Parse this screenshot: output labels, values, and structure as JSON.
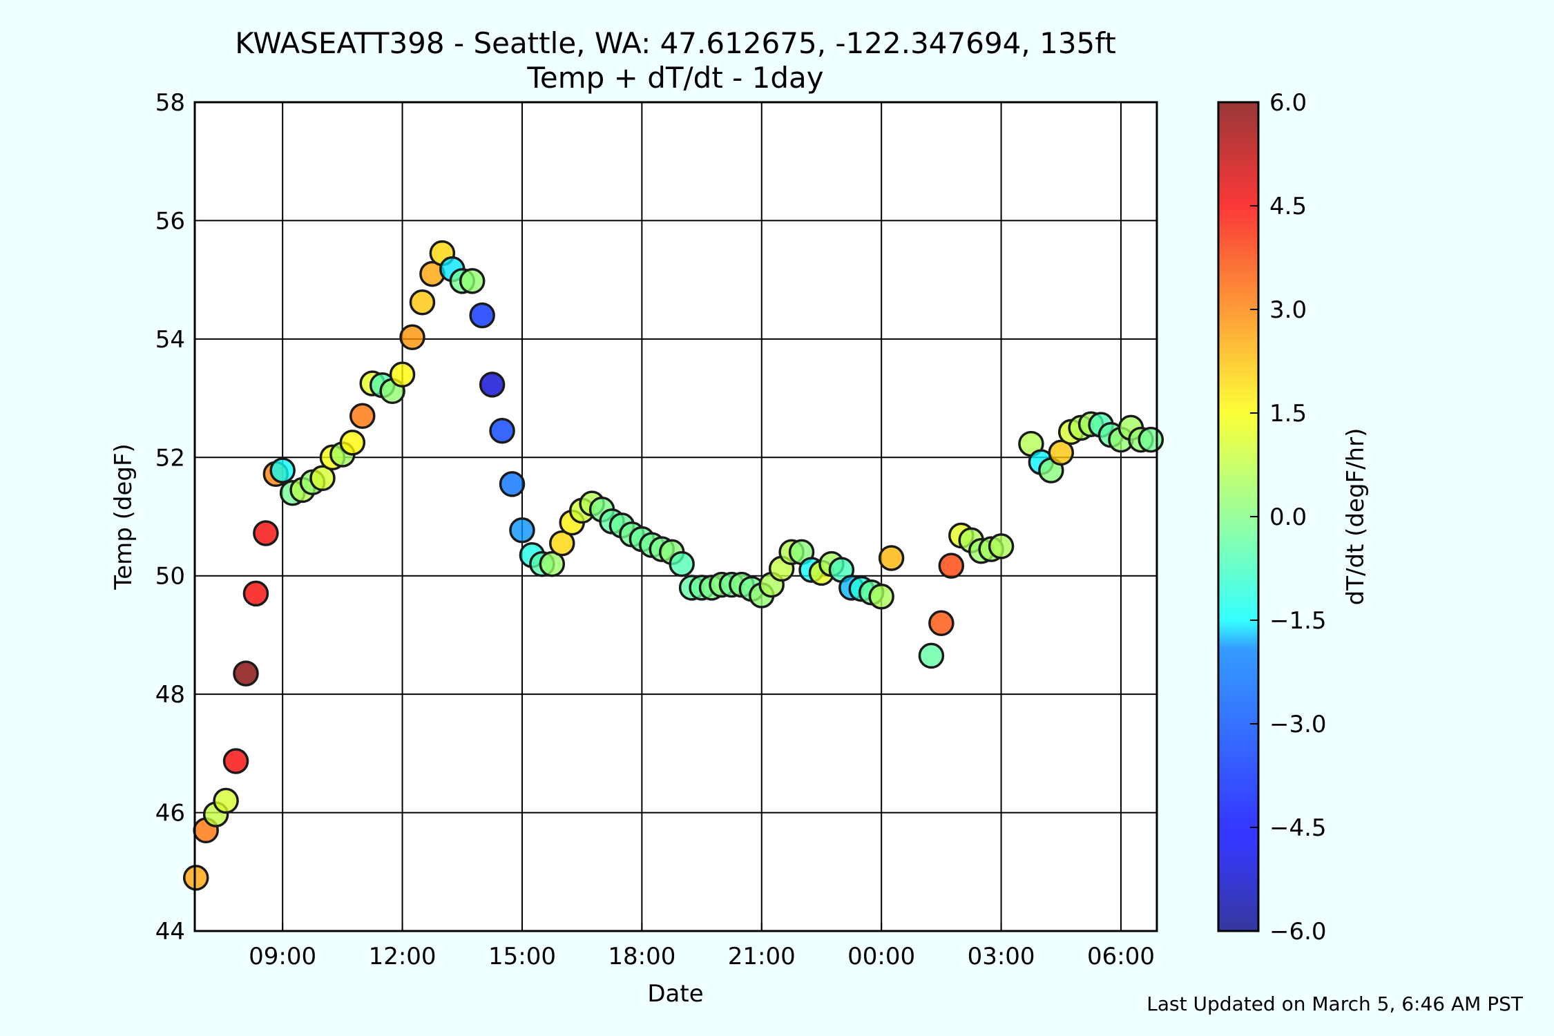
{
  "chart_data": {
    "type": "scatter",
    "title": "KWASEATT398 - Seattle, WA: 47.612675, -122.347694, 135ft",
    "subtitle": "Temp + dT/dt - 1day",
    "xlabel": "Date",
    "ylabel": "Temp (degF)",
    "colorbar_label": "dT/dt (degF/hr)",
    "footer": "Last Updated on March 5, 6:46 AM PST",
    "grid": true,
    "x_unit": "hours",
    "xlim": [
      6.8,
      30.9
    ],
    "ylim": [
      44,
      58
    ],
    "x_ticks": [
      {
        "x": 9,
        "label": "09:00"
      },
      {
        "x": 12,
        "label": "12:00"
      },
      {
        "x": 15,
        "label": "15:00"
      },
      {
        "x": 18,
        "label": "18:00"
      },
      {
        "x": 21,
        "label": "21:00"
      },
      {
        "x": 24,
        "label": "00:00"
      },
      {
        "x": 27,
        "label": "03:00"
      },
      {
        "x": 30,
        "label": "06:00"
      }
    ],
    "y_ticks": [
      {
        "y": 44,
        "label": "44"
      },
      {
        "y": 46,
        "label": "46"
      },
      {
        "y": 48,
        "label": "48"
      },
      {
        "y": 50,
        "label": "50"
      },
      {
        "y": 52,
        "label": "52"
      },
      {
        "y": 54,
        "label": "54"
      },
      {
        "y": 56,
        "label": "56"
      },
      {
        "y": 58,
        "label": "58"
      }
    ],
    "colorbar": {
      "range": [
        -6,
        6
      ],
      "colormap": "jet",
      "ticks": [
        {
          "v": 6,
          "label": "6.0"
        },
        {
          "v": 4.5,
          "label": "4.5"
        },
        {
          "v": 3,
          "label": "3.0"
        },
        {
          "v": 1.5,
          "label": "1.5"
        },
        {
          "v": 0,
          "label": "0.0"
        },
        {
          "v": -1.5,
          "label": "−1.5"
        },
        {
          "v": -3,
          "label": "−3.0"
        },
        {
          "v": -4.5,
          "label": "−4.5"
        },
        {
          "v": -6,
          "label": "−6.0"
        }
      ]
    },
    "points": [
      {
        "x": 6.83,
        "y": 44.9,
        "c": 2.6
      },
      {
        "x": 7.08,
        "y": 45.7,
        "c": 3.2
      },
      {
        "x": 7.33,
        "y": 45.97,
        "c": 0.8
      },
      {
        "x": 7.58,
        "y": 46.2,
        "c": 1.0
      },
      {
        "x": 7.83,
        "y": 46.87,
        "c": 4.6
      },
      {
        "x": 8.08,
        "y": 48.35,
        "c": 6.0
      },
      {
        "x": 8.33,
        "y": 49.7,
        "c": 4.6
      },
      {
        "x": 8.58,
        "y": 50.72,
        "c": 4.6
      },
      {
        "x": 8.83,
        "y": 51.72,
        "c": 3.0
      },
      {
        "x": 9.0,
        "y": 51.78,
        "c": -1.4
      },
      {
        "x": 9.25,
        "y": 51.4,
        "c": -0.2
      },
      {
        "x": 9.5,
        "y": 51.45,
        "c": 0.6
      },
      {
        "x": 9.75,
        "y": 51.58,
        "c": 0.2
      },
      {
        "x": 10.0,
        "y": 51.65,
        "c": 1.0
      },
      {
        "x": 10.25,
        "y": 52.0,
        "c": 1.4
      },
      {
        "x": 10.5,
        "y": 52.05,
        "c": 0.4
      },
      {
        "x": 10.75,
        "y": 52.25,
        "c": 1.6
      },
      {
        "x": 11.0,
        "y": 52.7,
        "c": 3.2
      },
      {
        "x": 11.25,
        "y": 53.25,
        "c": 1.2
      },
      {
        "x": 11.5,
        "y": 53.22,
        "c": -0.6
      },
      {
        "x": 11.75,
        "y": 53.12,
        "c": 0.2
      },
      {
        "x": 12.0,
        "y": 53.4,
        "c": 1.6
      },
      {
        "x": 12.25,
        "y": 54.03,
        "c": 2.8
      },
      {
        "x": 12.5,
        "y": 54.62,
        "c": 2.2
      },
      {
        "x": 12.75,
        "y": 55.1,
        "c": 2.6
      },
      {
        "x": 13.0,
        "y": 55.45,
        "c": 2.0
      },
      {
        "x": 13.25,
        "y": 55.18,
        "c": -1.8
      },
      {
        "x": 13.5,
        "y": 54.98,
        "c": -0.2
      },
      {
        "x": 13.75,
        "y": 54.98,
        "c": 0.2
      },
      {
        "x": 14.0,
        "y": 54.4,
        "c": -4.0
      },
      {
        "x": 14.25,
        "y": 53.23,
        "c": -5.0
      },
      {
        "x": 14.5,
        "y": 52.45,
        "c": -3.8
      },
      {
        "x": 14.75,
        "y": 51.55,
        "c": -3.2
      },
      {
        "x": 15.0,
        "y": 50.77,
        "c": -2.8
      },
      {
        "x": 15.25,
        "y": 50.35,
        "c": -1.2
      },
      {
        "x": 15.5,
        "y": 50.2,
        "c": -0.5
      },
      {
        "x": 15.75,
        "y": 50.2,
        "c": 0.3
      },
      {
        "x": 16.0,
        "y": 50.55,
        "c": 2.0
      },
      {
        "x": 16.25,
        "y": 50.9,
        "c": 1.7
      },
      {
        "x": 16.5,
        "y": 51.1,
        "c": 0.9
      },
      {
        "x": 16.75,
        "y": 51.22,
        "c": 0.6
      },
      {
        "x": 17.0,
        "y": 51.12,
        "c": -0.1
      },
      {
        "x": 17.25,
        "y": 50.92,
        "c": -0.4
      },
      {
        "x": 17.5,
        "y": 50.85,
        "c": -0.3
      },
      {
        "x": 17.75,
        "y": 50.7,
        "c": -0.2
      },
      {
        "x": 18.0,
        "y": 50.62,
        "c": -0.3
      },
      {
        "x": 18.25,
        "y": 50.52,
        "c": -0.2
      },
      {
        "x": 18.5,
        "y": 50.45,
        "c": -0.1
      },
      {
        "x": 18.75,
        "y": 50.4,
        "c": 0.1
      },
      {
        "x": 19.0,
        "y": 50.2,
        "c": -0.6
      },
      {
        "x": 19.25,
        "y": 49.8,
        "c": -0.4
      },
      {
        "x": 19.5,
        "y": 49.8,
        "c": -0.3
      },
      {
        "x": 19.75,
        "y": 49.8,
        "c": -0.1
      },
      {
        "x": 20.0,
        "y": 49.85,
        "c": 0.1
      },
      {
        "x": 20.25,
        "y": 49.85,
        "c": -0.2
      },
      {
        "x": 20.5,
        "y": 49.85,
        "c": 0.0
      },
      {
        "x": 20.75,
        "y": 49.78,
        "c": -0.2
      },
      {
        "x": 21.0,
        "y": 49.67,
        "c": 0.2
      },
      {
        "x": 21.25,
        "y": 49.85,
        "c": 0.5
      },
      {
        "x": 21.5,
        "y": 50.12,
        "c": 0.8
      },
      {
        "x": 21.75,
        "y": 50.4,
        "c": 0.6
      },
      {
        "x": 22.0,
        "y": 50.4,
        "c": 0.1
      },
      {
        "x": 22.25,
        "y": 50.1,
        "c": -1.4
      },
      {
        "x": 22.5,
        "y": 50.05,
        "c": 1.2
      },
      {
        "x": 22.75,
        "y": 50.2,
        "c": 0.4
      },
      {
        "x": 23.0,
        "y": 50.1,
        "c": -0.7
      },
      {
        "x": 23.25,
        "y": 49.8,
        "c": -2.4
      },
      {
        "x": 23.5,
        "y": 49.78,
        "c": -1.1
      },
      {
        "x": 23.75,
        "y": 49.72,
        "c": -0.3
      },
      {
        "x": 24.0,
        "y": 49.65,
        "c": 0.5
      },
      {
        "x": 24.25,
        "y": 50.3,
        "c": 2.4
      },
      {
        "x": 25.25,
        "y": 48.65,
        "c": -0.4
      },
      {
        "x": 25.5,
        "y": 49.2,
        "c": 3.6
      },
      {
        "x": 25.75,
        "y": 50.17,
        "c": 3.8
      },
      {
        "x": 26.0,
        "y": 50.68,
        "c": 1.2
      },
      {
        "x": 26.25,
        "y": 50.6,
        "c": 0.5
      },
      {
        "x": 26.5,
        "y": 50.42,
        "c": 0.3
      },
      {
        "x": 26.75,
        "y": 50.45,
        "c": 0.4
      },
      {
        "x": 27.0,
        "y": 50.5,
        "c": 0.5
      },
      {
        "x": 27.75,
        "y": 52.23,
        "c": 0.6
      },
      {
        "x": 28.0,
        "y": 51.92,
        "c": -1.6
      },
      {
        "x": 28.25,
        "y": 51.78,
        "c": 0.1
      },
      {
        "x": 28.5,
        "y": 52.08,
        "c": 2.2
      },
      {
        "x": 28.75,
        "y": 52.43,
        "c": 1.0
      },
      {
        "x": 29.0,
        "y": 52.5,
        "c": 0.6
      },
      {
        "x": 29.25,
        "y": 52.56,
        "c": 0.4
      },
      {
        "x": 29.5,
        "y": 52.55,
        "c": -0.6
      },
      {
        "x": 29.75,
        "y": 52.38,
        "c": -0.4
      },
      {
        "x": 30.0,
        "y": 52.3,
        "c": 0.2
      },
      {
        "x": 30.25,
        "y": 52.5,
        "c": 0.4
      },
      {
        "x": 30.5,
        "y": 52.3,
        "c": 0.2
      },
      {
        "x": 30.75,
        "y": 52.3,
        "c": -0.2
      }
    ]
  }
}
